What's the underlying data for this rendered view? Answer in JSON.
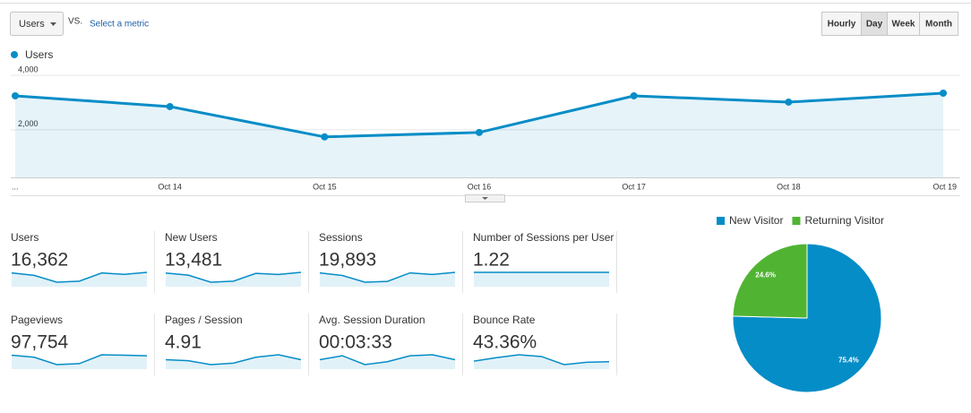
{
  "controls": {
    "metric_dropdown": "Users",
    "vs": "VS.",
    "select_metric": "Select a metric",
    "granularity": [
      "Hourly",
      "Day",
      "Week",
      "Month"
    ],
    "active_granularity": 1
  },
  "chart_data": [
    {
      "type": "line",
      "categories": [
        "...",
        "Oct 14",
        "Oct 15",
        "Oct 16",
        "Oct 17",
        "Oct 18",
        "Oct 19"
      ],
      "series": [
        {
          "name": "Users",
          "color": "#058dc7",
          "values": [
            3246,
            2852,
            1738,
            1902,
            3246,
            3016,
            3344
          ]
        }
      ],
      "ylim": [
        250,
        4200
      ],
      "yticks": [
        {
          "value": 2000,
          "label": "2,000"
        },
        {
          "value": 4000,
          "label": "4,000"
        }
      ],
      "grid": true,
      "area": true
    },
    {
      "type": "pie",
      "categories": [
        "New Visitor",
        "Returning Visitor"
      ],
      "values": [
        75.4,
        24.6
      ],
      "value_labels": [
        "75.4%",
        "24.6%"
      ],
      "colors": [
        "#058dc7",
        "#50b432"
      ],
      "legend": "top"
    }
  ],
  "metrics": [
    {
      "label": "Users",
      "value": "16,362",
      "spark": [
        3246,
        2852,
        1738,
        1902,
        3246,
        3016,
        3344
      ]
    },
    {
      "label": "New Users",
      "value": "13,481",
      "spark": [
        2700,
        2400,
        1400,
        1550,
        2650,
        2500,
        2800
      ]
    },
    {
      "label": "Sessions",
      "value": "19,893",
      "spark": [
        3950,
        3450,
        2150,
        2300,
        3950,
        3650,
        4050
      ]
    },
    {
      "label": "Number of Sessions per User",
      "value": "1.22",
      "spark": [
        1.22,
        1.22,
        1.22,
        1.22,
        1.22,
        1.22,
        1.22
      ]
    },
    {
      "label": "Pageviews",
      "value": "97,754",
      "spark": [
        18000,
        16000,
        8500,
        9500,
        18500,
        18000,
        17500
      ]
    },
    {
      "label": "Pages / Session",
      "value": "4.91",
      "spark": [
        4.9,
        4.88,
        4.8,
        4.83,
        4.95,
        5.0,
        4.9
      ]
    },
    {
      "label": "Avg. Session Duration",
      "value": "00:03:33",
      "spark": [
        210,
        214,
        205,
        208,
        214,
        215,
        210
      ]
    },
    {
      "label": "Bounce Rate",
      "value": "43.36%",
      "spark": [
        43.2,
        43.8,
        44.3,
        44.0,
        42.6,
        43.0,
        43.1
      ]
    }
  ]
}
